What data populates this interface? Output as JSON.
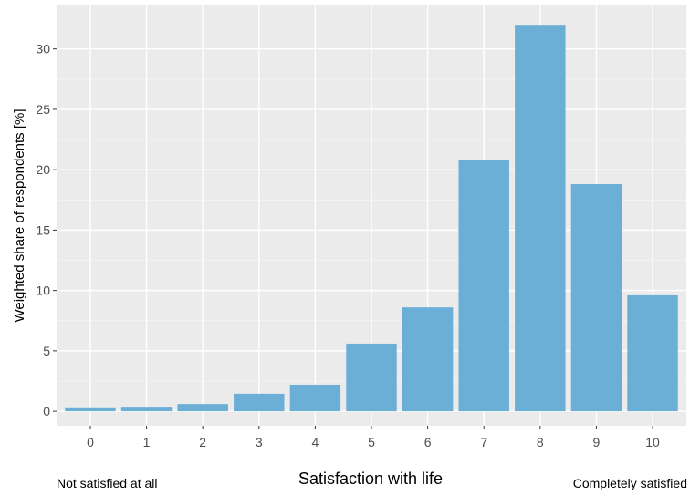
{
  "chart_data": {
    "type": "bar",
    "categories": [
      "0",
      "1",
      "2",
      "3",
      "4",
      "5",
      "6",
      "7",
      "8",
      "9",
      "10"
    ],
    "values": [
      0.25,
      0.3,
      0.6,
      1.45,
      2.2,
      5.6,
      8.6,
      20.8,
      32.0,
      18.8,
      9.6
    ],
    "xlabel": "Satisfaction with life",
    "ylabel": "Weighted share of respondents [%]",
    "ylim": [
      -1.2,
      33.6
    ],
    "yticks": [
      0,
      5,
      10,
      15,
      20,
      25,
      30
    ],
    "left_caption": "Not satisfied at all",
    "right_caption": "Completely satisfied",
    "grid": true,
    "colors": {
      "bar": "#6baed6",
      "panel": "#ebebeb",
      "grid_major": "#ffffff",
      "grid_minor": "#f5f5f5",
      "tick_text": "#4d4d4d",
      "tick_mark": "#333333"
    }
  }
}
